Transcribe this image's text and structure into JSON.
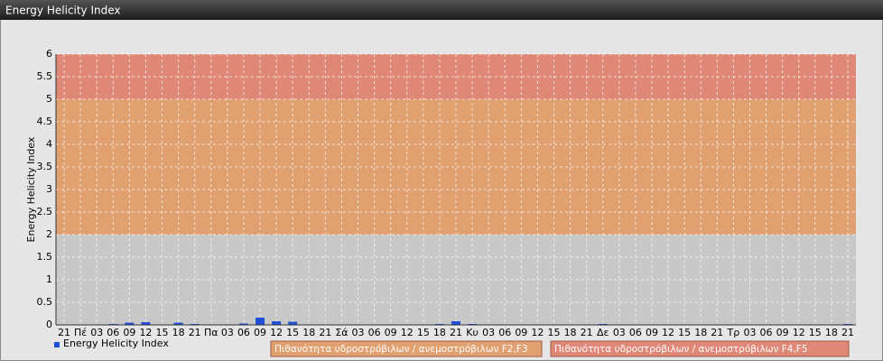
{
  "header": {
    "title": "Energy Helicity Index"
  },
  "chart_data": {
    "type": "bar",
    "y_label": "Energy Helicity Index",
    "categories": [
      "21",
      "Πέ",
      "03",
      "06",
      "09",
      "12",
      "15",
      "18",
      "21",
      "Πα",
      "03",
      "06",
      "09",
      "12",
      "15",
      "18",
      "21",
      "Σά",
      "03",
      "06",
      "09",
      "12",
      "15",
      "18",
      "21",
      "Κυ",
      "03",
      "06",
      "09",
      "12",
      "15",
      "18",
      "21",
      "Δε",
      "03",
      "06",
      "09",
      "12",
      "15",
      "18",
      "21",
      "Τρ",
      "03",
      "06",
      "09",
      "12",
      "15",
      "18",
      "21"
    ],
    "series": [
      {
        "name": "Energy Helicity Index",
        "color": "#1f4fd8",
        "values": [
          0.01,
          0.01,
          0.01,
          0.02,
          0.05,
          0.06,
          0.01,
          0.05,
          0.02,
          0.01,
          0.01,
          0.03,
          0.16,
          0.08,
          0.07,
          0.01,
          0.01,
          0.01,
          0.01,
          0.01,
          0.01,
          0.01,
          0.01,
          0.02,
          0.08,
          0.02,
          0.01,
          0.01,
          0.01,
          0.01,
          0.01,
          0.01,
          0.01,
          0.02,
          0.01,
          0.01,
          0.01,
          0.01,
          0.01,
          0.01,
          0.01,
          0.01,
          0.01,
          0.01,
          0.01,
          0.01,
          0.01,
          0.01,
          0.02
        ]
      }
    ],
    "bands": [
      {
        "name": "Πιθανότητα υδροστρόβιλων / ανεμοστρόβιλων F2,F3",
        "from": 2,
        "to": 5,
        "color": "#e0a070"
      },
      {
        "name": "Πιθανότητα υδροστρόβιλων / ανεμοστρόβιλων F4,F5",
        "from": 5,
        "to": 6,
        "color": "#e08878"
      }
    ],
    "ylim": [
      0,
      6
    ],
    "yticks": [
      0,
      0.5,
      1,
      1.5,
      2,
      2.5,
      3,
      3.5,
      4,
      4.5,
      5,
      5.5,
      6
    ],
    "grid": true
  }
}
